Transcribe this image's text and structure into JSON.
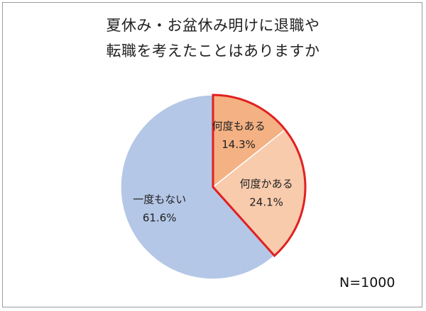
{
  "chart_data": {
    "type": "pie",
    "title_lines": [
      "夏休み・お盆休み明けに退職や",
      "転職を考えたことはありますか"
    ],
    "slices": [
      {
        "label": "何度もある",
        "value": 14.3,
        "value_label": "14.3%",
        "color": "#F4B183",
        "highlighted": true
      },
      {
        "label": "何度かある",
        "value": 24.1,
        "value_label": "24.1%",
        "color": "#F8CBAD",
        "highlighted": true
      },
      {
        "label": "一度もない",
        "value": 61.6,
        "value_label": "61.6%",
        "color": "#B4C7E7",
        "highlighted": false
      }
    ],
    "highlight_color": "#E02020",
    "start_angle_deg": 0,
    "direction": "clockwise",
    "note": "N=1000"
  }
}
